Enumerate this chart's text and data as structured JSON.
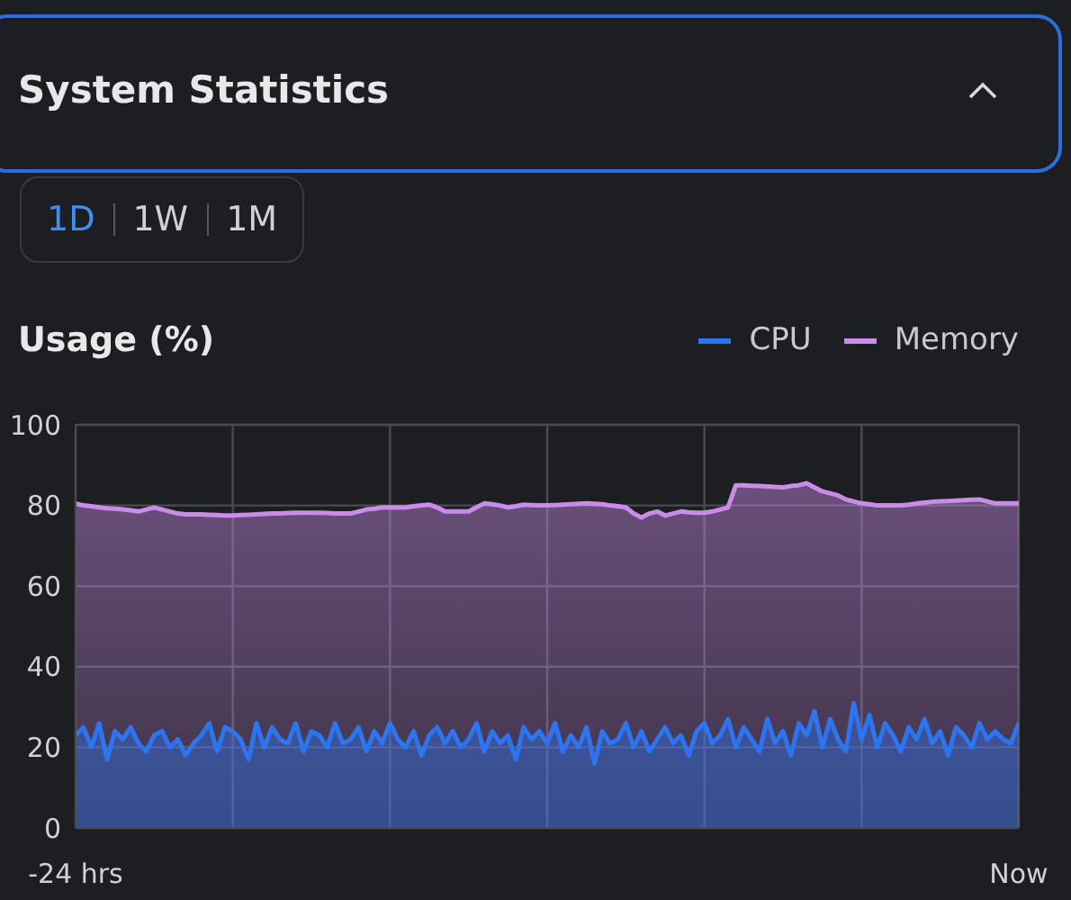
{
  "chart_data": {
    "type": "area",
    "title": "System Statistics",
    "subtitle": "Usage (%)",
    "annotations": [
      "1D",
      "1W",
      "1M"
    ],
    "categories": [
      "-24 hrs",
      null,
      null,
      null,
      null,
      null,
      null,
      null,
      null,
      null,
      null,
      null,
      null,
      null,
      null,
      null,
      null,
      null,
      null,
      null,
      null,
      null,
      null,
      null,
      null,
      null,
      null,
      null,
      null,
      null,
      null,
      null,
      null,
      null,
      null,
      null,
      null,
      null,
      null,
      null,
      null,
      null,
      null,
      null,
      null,
      null,
      null,
      null,
      null,
      null,
      null,
      null,
      null,
      null,
      null,
      null,
      null,
      null,
      null,
      null,
      null,
      null,
      null,
      null,
      null,
      null,
      null,
      null,
      null,
      null,
      null,
      null,
      null,
      null,
      null,
      null,
      null,
      null,
      null,
      null,
      null,
      null,
      null,
      null,
      null,
      null,
      null,
      null,
      null,
      null,
      null,
      null,
      null,
      null,
      null,
      null,
      null,
      null,
      null,
      null,
      null,
      null,
      null,
      null,
      null,
      null,
      null,
      null,
      null,
      null,
      null,
      null,
      null,
      null,
      null,
      null,
      null,
      null,
      null,
      null,
      "Now"
    ],
    "ylim": [
      0,
      100
    ],
    "yticks": [
      0,
      20,
      40,
      60,
      80,
      100
    ],
    "grid": true,
    "legend": "top right",
    "line_style": "solid",
    "marker": "none",
    "series": [
      {
        "name": "Memory",
        "color": "#c98ce8",
        "values": [
          80.5,
          80,
          79.8,
          79.5,
          79.3,
          79.2,
          79,
          78.8,
          78.5,
          79,
          79.5,
          79,
          78.5,
          78,
          77.8,
          77.8,
          77.8,
          77.7,
          77.6,
          77.5,
          77.5,
          77.6,
          77.7,
          77.8,
          77.9,
          78,
          78,
          78.1,
          78.2,
          78.2,
          78.2,
          78.2,
          78.1,
          78,
          78,
          78,
          78.5,
          79,
          79.2,
          79.5,
          79.5,
          79.5,
          79.5,
          79.8,
          80,
          80.2,
          79.5,
          78.5,
          78.5,
          78.5,
          78.5,
          79.5,
          80.5,
          80.3,
          80,
          79.5,
          79.8,
          80.2,
          80.1,
          80,
          80,
          80.1,
          80.2,
          80.3,
          80.4,
          80.5,
          80.4,
          80.3,
          80,
          79.8,
          79.5,
          78,
          77,
          78,
          78.5,
          77.5,
          78,
          78.5,
          78.3,
          78.2,
          78.2,
          78.5,
          79,
          79.5,
          85,
          85,
          84.9,
          84.8,
          84.7,
          84.6,
          84.5,
          84.8,
          85,
          85.5,
          84.5,
          83.5,
          83,
          82.5,
          81.5,
          81,
          80.5,
          80.3,
          80,
          80,
          80,
          80,
          80.2,
          80.5,
          80.7,
          80.9,
          81,
          81.1,
          81.2,
          81.3,
          81.4,
          81.5,
          81,
          80.5,
          80.5,
          80.5,
          80.5
        ]
      },
      {
        "name": "CPU",
        "color": "#2d74f0",
        "values": [
          23,
          25,
          20,
          26,
          17,
          24,
          22,
          25,
          21,
          19,
          23,
          24,
          20,
          22,
          18,
          21,
          23,
          26,
          19,
          25,
          24,
          22,
          17,
          26,
          20,
          25,
          22,
          21,
          26,
          19,
          24,
          23,
          20,
          26,
          21,
          22,
          25,
          19,
          24,
          21,
          26,
          22,
          20,
          24,
          18,
          23,
          25,
          21,
          24,
          20,
          22,
          26,
          19,
          24,
          21,
          23,
          17,
          25,
          22,
          24,
          21,
          26,
          19,
          23,
          20,
          25,
          16,
          24,
          21,
          22,
          26,
          20,
          24,
          19,
          22,
          25,
          21,
          23,
          18,
          24,
          26,
          21,
          23,
          27,
          20,
          25,
          22,
          19,
          27,
          21,
          24,
          18,
          26,
          23,
          29,
          20,
          27,
          22,
          19,
          31,
          22,
          28,
          20,
          26,
          23,
          19,
          25,
          22,
          27,
          21,
          24,
          18,
          25,
          23,
          20,
          26,
          22,
          24,
          22,
          21,
          26
        ]
      }
    ]
  }
}
